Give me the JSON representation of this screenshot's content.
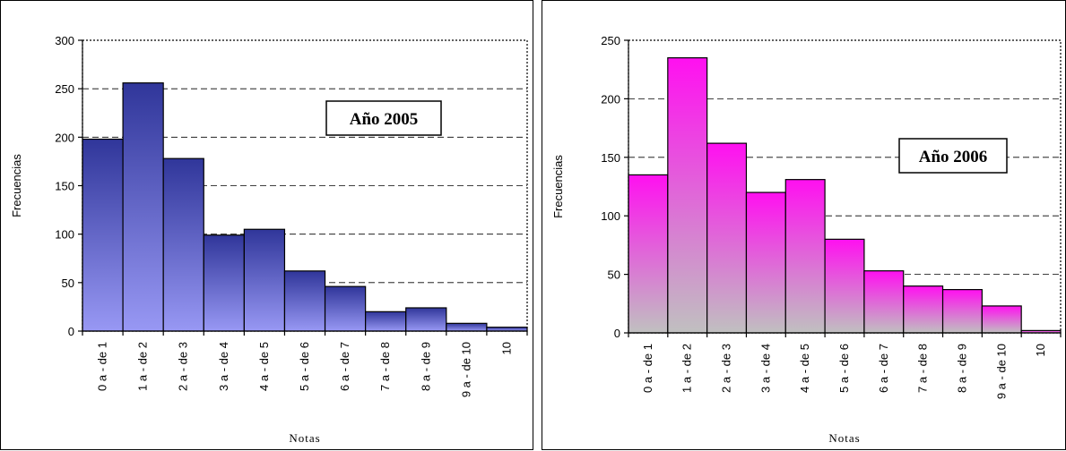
{
  "chart_data": [
    {
      "type": "bar",
      "annotation": "Año 2005",
      "xlabel": "Notas",
      "ylabel": "Frecuencias",
      "ylim": [
        0,
        300
      ],
      "yticks": [
        0,
        50,
        100,
        150,
        200,
        250,
        300
      ],
      "grid": true,
      "categories": [
        "0 a - de 1",
        "1 a - de 2",
        "2 a - de 3",
        "3 a - de 4",
        "4 a - de 5",
        "5 a - de 6",
        "6 a - de 7",
        "7 a - de 8",
        "8 a - de 9",
        "9 a - de 10",
        "10"
      ],
      "values": [
        198,
        256,
        178,
        99,
        105,
        62,
        46,
        20,
        24,
        8,
        4
      ],
      "colors": {
        "top": "#30369a",
        "bottom": "#9898f4"
      }
    },
    {
      "type": "bar",
      "annotation": "Año 2006",
      "xlabel": "Notas",
      "ylabel": "Frecuencias",
      "ylim": [
        0,
        250
      ],
      "yticks": [
        0,
        50,
        100,
        150,
        200,
        250
      ],
      "grid": true,
      "categories": [
        "0 a - de 1",
        "1 a - de 2",
        "2 a - de 3",
        "3 a - de 4",
        "4 a - de 5",
        "5 a - de 6",
        "6 a - de 7",
        "7 a - de 8",
        "8 a - de 9",
        "9 a - de 10",
        "10"
      ],
      "values": [
        135,
        235,
        162,
        120,
        131,
        80,
        53,
        40,
        37,
        23,
        2
      ],
      "colors": {
        "top": "#ff10f0",
        "bottom": "#c0c0c0"
      }
    }
  ]
}
